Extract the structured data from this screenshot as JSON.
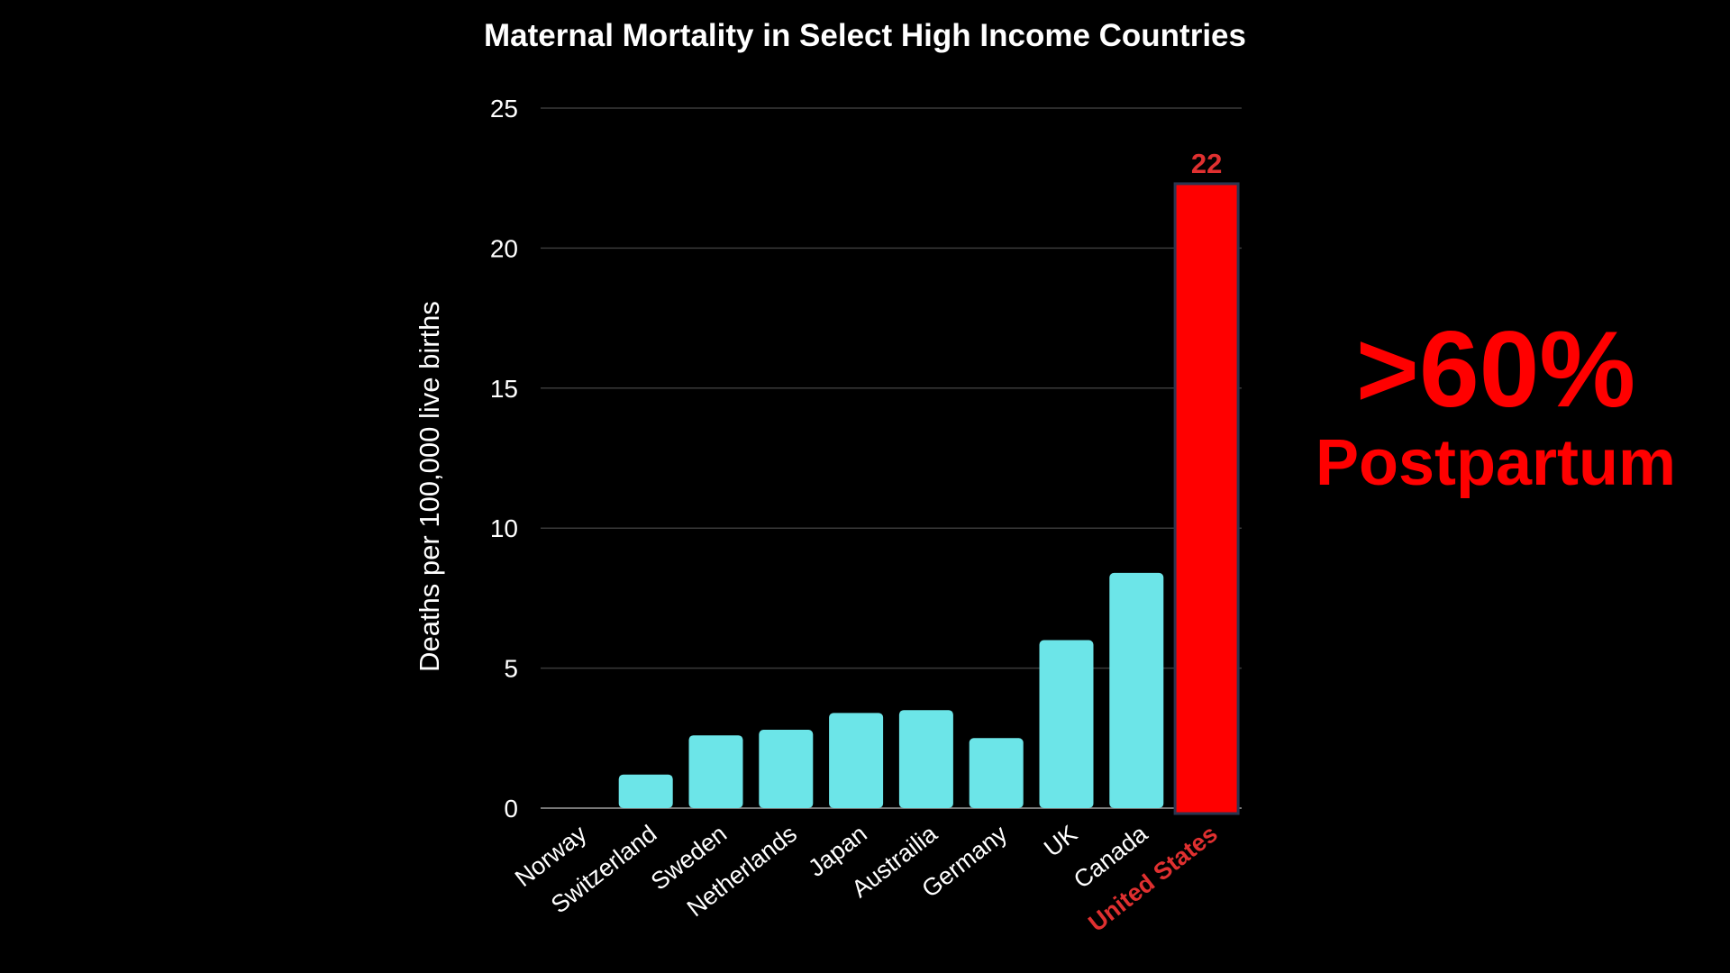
{
  "chart_data": {
    "type": "bar",
    "title": "Maternal Mortality in Select High Income Countries",
    "ylabel": "Deaths per 100,000 live births",
    "xlabel": "",
    "ylim": [
      0,
      25
    ],
    "yticks": [
      0,
      5,
      10,
      15,
      20,
      25
    ],
    "grid": true,
    "categories": [
      "Norway",
      "Switzerland",
      "Sweden",
      "Netherlands",
      "Japan",
      "Austrailia",
      "Germany",
      "UK",
      "Canada",
      "United States"
    ],
    "values": [
      0,
      1.2,
      2.6,
      2.8,
      3.4,
      3.5,
      2.5,
      6.0,
      8.4,
      22.3
    ],
    "data_labels": [
      {
        "category": "United States",
        "text": "22"
      }
    ],
    "highlight": {
      "category": "United States",
      "color": "#ff0000"
    },
    "bar_color": "#6ce5e8",
    "annotations": [
      ">60%",
      "Postpartum"
    ]
  },
  "callout": {
    "big": ">60%",
    "sub": "Postpartum",
    "color": "#ff0000"
  }
}
